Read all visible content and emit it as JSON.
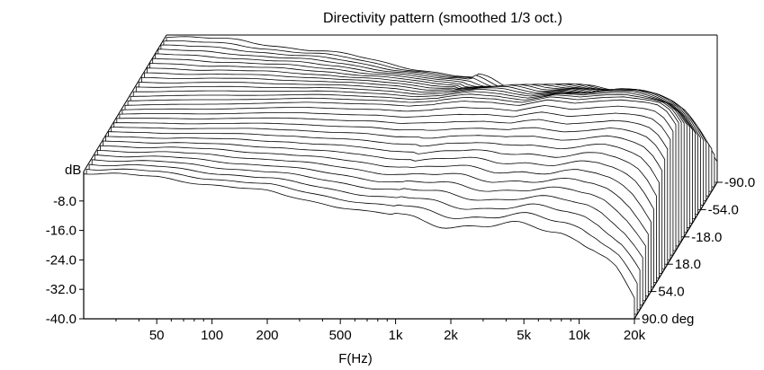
{
  "chart_data": {
    "type": "waterfall",
    "title": "Directivity pattern (smoothed 1/3 oct.)",
    "xlabel": "F(Hz)",
    "ylabel": "dB",
    "zlabel_suffix": "deg",
    "x_scale": "log",
    "xlim": [
      20,
      20000
    ],
    "ylim": [
      -40,
      0
    ],
    "x_ticks": [
      {
        "value": 50,
        "label": "50"
      },
      {
        "value": 100,
        "label": "100"
      },
      {
        "value": 200,
        "label": "200"
      },
      {
        "value": 500,
        "label": "500"
      },
      {
        "value": 1000,
        "label": "1k"
      },
      {
        "value": 2000,
        "label": "2k"
      },
      {
        "value": 5000,
        "label": "5k"
      },
      {
        "value": 10000,
        "label": "10k"
      },
      {
        "value": 20000,
        "label": "20k"
      }
    ],
    "y_ticks": [
      {
        "value": -8,
        "label": "-8.0"
      },
      {
        "value": -16,
        "label": "-16.0"
      },
      {
        "value": -24,
        "label": "-24.0"
      },
      {
        "value": -32,
        "label": "-32.0"
      },
      {
        "value": -40,
        "label": "-40.0"
      }
    ],
    "angle_ticks": [
      {
        "value": 90,
        "label": "90.0"
      },
      {
        "value": 54,
        "label": "54.0"
      },
      {
        "value": 18,
        "label": "18.0"
      },
      {
        "value": -18,
        "label": "-18.0"
      },
      {
        "value": -54,
        "label": "-54.0"
      },
      {
        "value": -90,
        "label": "-90.0"
      }
    ],
    "angles": [
      90,
      84,
      78,
      72,
      66,
      60,
      54,
      48,
      42,
      36,
      30,
      24,
      18,
      12,
      6,
      0,
      -6,
      -12,
      -18,
      -24,
      -30,
      -36,
      -42,
      -48,
      -54,
      -60,
      -66,
      -72,
      -78,
      -84,
      -90
    ],
    "freq_points": [
      20,
      50,
      100,
      200,
      500,
      700,
      1000,
      1400,
      2000,
      2800,
      4000,
      5600,
      8000,
      10000,
      12000,
      14000,
      16000,
      18000,
      20000
    ],
    "on_axis_db": [
      -0.5,
      -0.3,
      0.0,
      0.2,
      -0.2,
      -0.8,
      -0.4,
      0.6,
      0.5,
      -0.5,
      0.7,
      -0.2,
      0.8,
      1.2,
      0.8,
      0.3,
      -0.5,
      -2.5,
      -6.0
    ],
    "offaxis_mid_db_at_90": [
      -0.3,
      -1.5,
      -3.5,
      -5.5,
      -9.5,
      -11.0,
      -12.0,
      -13.5,
      -14.0,
      -14.5,
      -15.0,
      -15.5,
      -15.5,
      -16.0,
      -17.0,
      -19.0,
      -22.0,
      -26.0,
      -30.0
    ],
    "offaxis_hf_extra_db_at_90": [
      0,
      0,
      0,
      0,
      0,
      0,
      0,
      0,
      0,
      0,
      0,
      0,
      -1.0,
      -2.0,
      -3.0,
      -4.0,
      -4.5,
      -5.0,
      -5.0
    ]
  }
}
